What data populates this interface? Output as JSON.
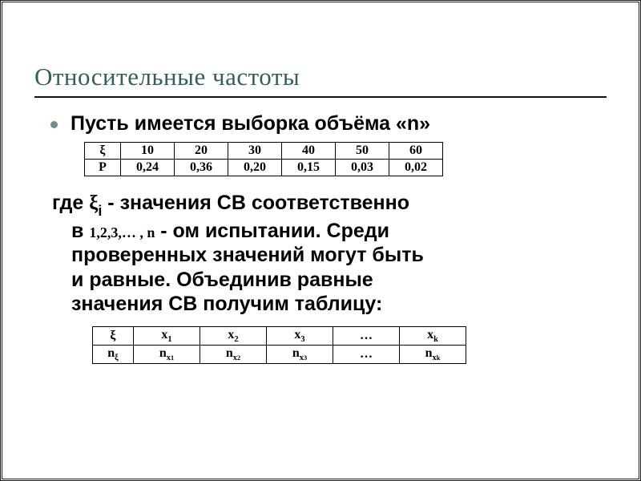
{
  "title": "Относительные частоты",
  "lead": "Пусть имеется выборка объёма «n»",
  "table1": {
    "row1": [
      "ξ",
      "10",
      "20",
      "30",
      "40",
      "50",
      "60"
    ],
    "row2": [
      "P",
      "0,24",
      "0,36",
      "0,20",
      "0,15",
      "0,03",
      "0,02"
    ]
  },
  "para": {
    "l1_a": "где ",
    "l1_xi": "ξ",
    "l1_sub": "i",
    "l1_b": " -  значения СВ соответственно",
    "l2_a": "в ",
    "l2_seq": "1,2,3,… , n",
    "l2_b": " - ом испытании. Среди",
    "l3": "проверенных значений могут быть",
    "l4": "и равные. Объединив равные",
    "l5": "значения СВ получим таблицу:"
  },
  "table2": {
    "row1": [
      "ξ",
      "x₁",
      "x₂",
      "x₃",
      "…",
      "xₖ"
    ],
    "row2_head": "nξ",
    "row2": [
      "nₓ₁",
      "nₓ₂",
      "nₓ₃",
      "…",
      "nₓₖ"
    ]
  },
  "colors": {
    "title": "#355e5e"
  }
}
